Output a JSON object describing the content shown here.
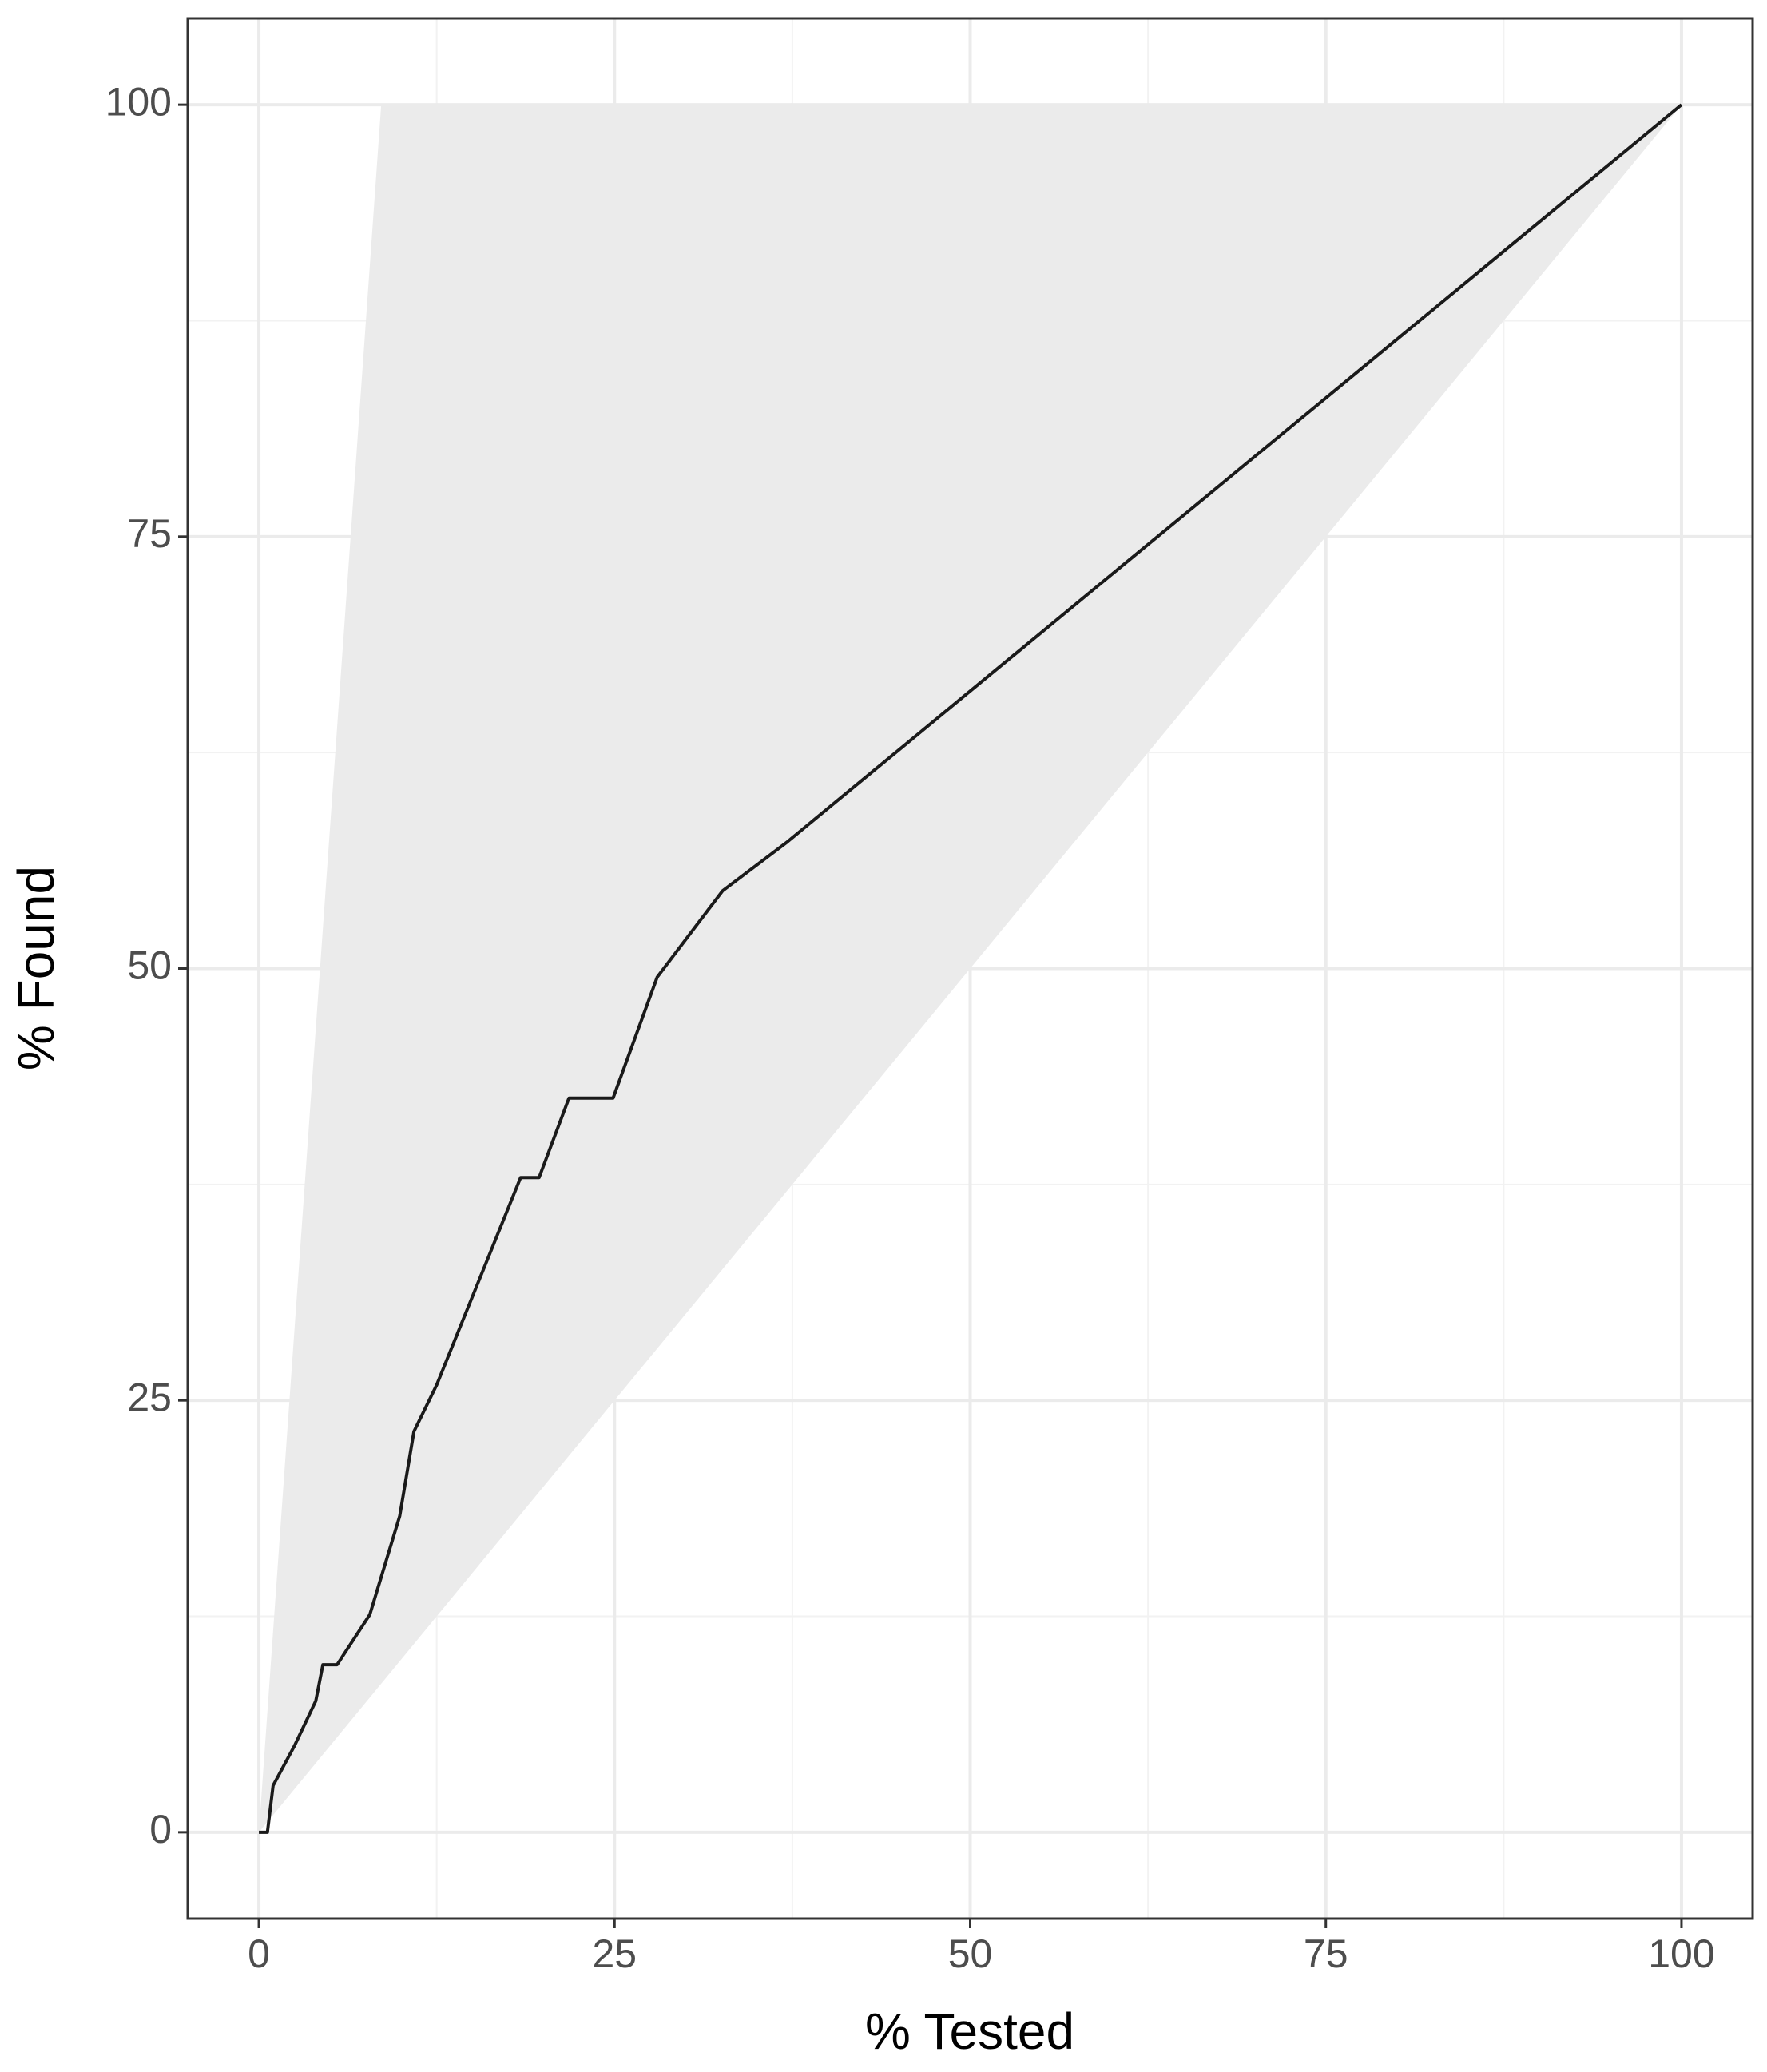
{
  "chart_data": {
    "type": "line",
    "x_label": "% Tested",
    "y_label": "% Found",
    "xlim": [
      -5,
      105
    ],
    "ylim": [
      -5,
      105
    ],
    "xticks": [
      0,
      25,
      50,
      75,
      100
    ],
    "yticks": [
      0,
      25,
      50,
      75,
      100
    ],
    "xminor": [
      12.5,
      37.5,
      62.5,
      87.5
    ],
    "yminor": [
      12.5,
      37.5,
      62.5,
      87.5
    ],
    "grid": true,
    "ribbon": {
      "color": "#ebebeb",
      "x": [
        0,
        8.6,
        100
      ],
      "lower": [
        0,
        8.6,
        100
      ],
      "upper": [
        0,
        100,
        100
      ]
    },
    "series": [
      {
        "color": "#1a1a1a",
        "x": [
          0,
          0.6,
          1,
          2.5,
          4,
          4.5,
          5.5,
          7.8,
          9.9,
          10.9,
          12.5,
          18.4,
          19.7,
          21.8,
          24.9,
          28,
          32.6,
          37.1,
          100
        ],
        "values": [
          0,
          0,
          2.7,
          5,
          7.6,
          9.7,
          9.7,
          12.6,
          18.3,
          23.2,
          25.9,
          37.9,
          37.9,
          42.5,
          42.5,
          49.5,
          54.5,
          57.3,
          100
        ]
      }
    ]
  }
}
